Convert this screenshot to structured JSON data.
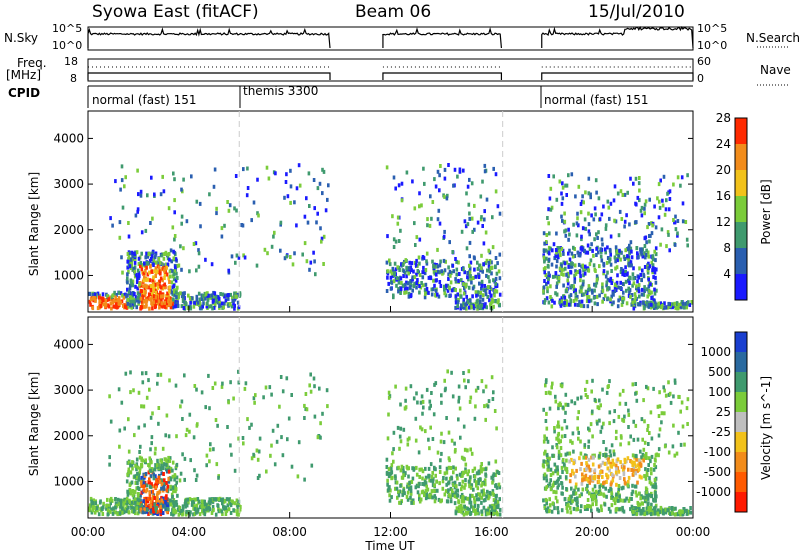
{
  "header": {
    "station": "Syowa East (fitACF)",
    "beam": "Beam 06",
    "date": "15/Jul/2010"
  },
  "left_labels": {
    "nsky": "N.Sky",
    "freq_line1": "Freq.",
    "freq_line2": "[MHz]",
    "cpid": "CPID"
  },
  "right_labels": {
    "nsearch": "N.Search",
    "nave": "Nave"
  },
  "noise_panel": {
    "left_ticks": [
      "10^5",
      "10^0"
    ],
    "right_ticks": [
      "10^5",
      "10^0"
    ]
  },
  "freq_panel": {
    "left_ticks": [
      "18",
      "8"
    ],
    "right_ticks": [
      "60",
      "0"
    ]
  },
  "cpid_panel": {
    "segments": [
      {
        "label": "normal (fast) 151",
        "start_h": 0
      },
      {
        "label": "themis 3300",
        "start_h": 6
      },
      {
        "label": "normal (fast) 151",
        "start_h": 18
      }
    ]
  },
  "data_gaps_hours": [
    [
      9.6,
      11.7
    ],
    [
      16.4,
      18
    ]
  ],
  "chart_data": [
    {
      "type": "heatmap",
      "name": "power",
      "ylabel": "Slant Range [km]",
      "y_ticks": [
        "1000",
        "2000",
        "3000",
        "4000"
      ],
      "ylim": [
        200,
        4600
      ],
      "colorbar_label": "Power [dB]",
      "colorbar_ticks": [
        "4",
        "8",
        "12",
        "16",
        "20",
        "24",
        "28"
      ],
      "colors": [
        "#1a1aff",
        "#2a5fb0",
        "#3f9a6e",
        "#7bcc3a",
        "#f2c21b",
        "#f28c1b",
        "#ff2a00"
      ]
    },
    {
      "type": "heatmap",
      "name": "velocity",
      "ylabel": "Slant Range [km]",
      "y_ticks": [
        "1000",
        "2000",
        "3000",
        "4000"
      ],
      "ylim": [
        200,
        4600
      ],
      "colorbar_label": "Velocity [m s^-1]",
      "colorbar_ticks": [
        "1000",
        "500",
        "100",
        "25",
        "-25",
        "-100",
        "-500",
        "-1000"
      ],
      "colors": [
        "#1a3fd0",
        "#2a6aa0",
        "#3f9a6e",
        "#7bcc3a",
        "#bfbfbf",
        "#f2c21b",
        "#f28c1b",
        "#ff5a00",
        "#ff1a00"
      ]
    }
  ],
  "x_axis": {
    "ticks": [
      "00:00",
      "04:00",
      "08:00",
      "12:00",
      "16:00",
      "20:00",
      "00:00"
    ],
    "label": "Time UT"
  }
}
